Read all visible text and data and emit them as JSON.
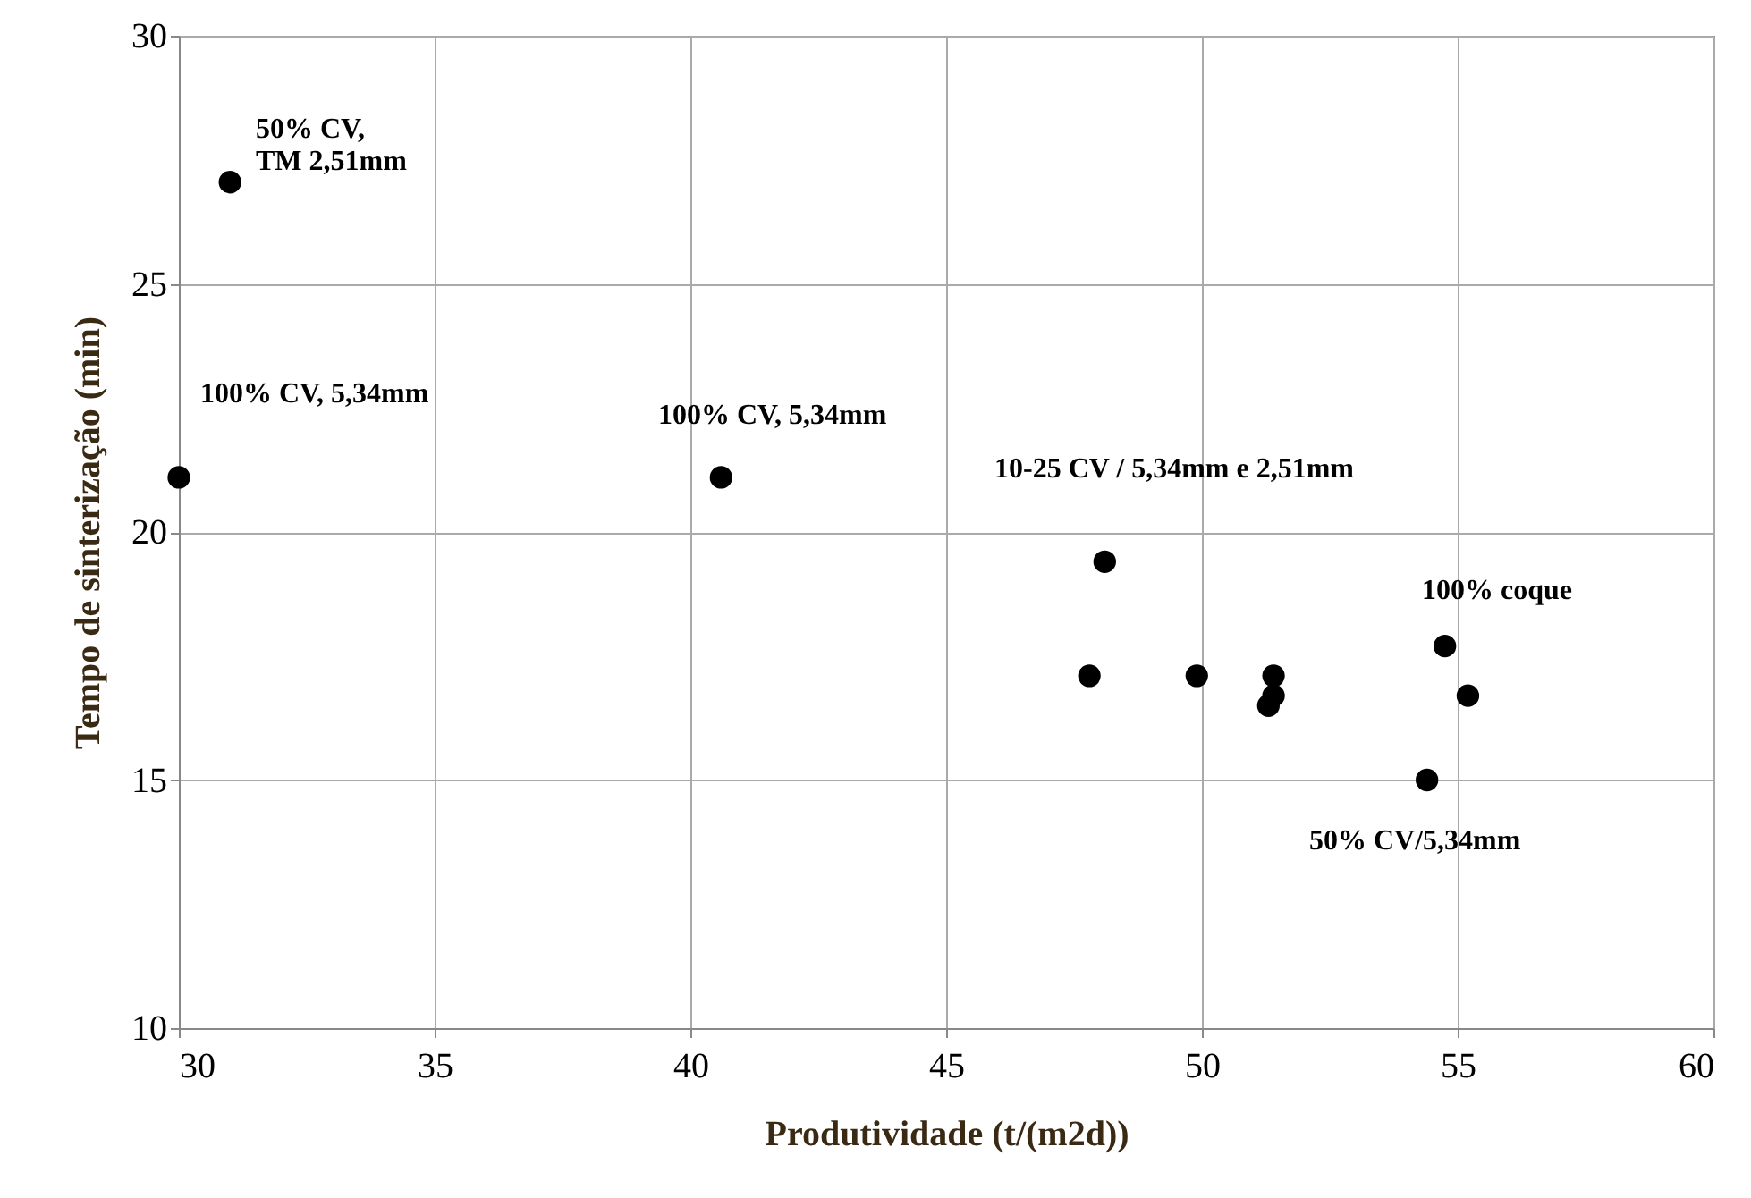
{
  "chart_data": {
    "type": "scatter",
    "xlabel": "Produtividade (t/(m2d))",
    "ylabel": "Tempo de sinterização (min)",
    "x": [
      31,
      30,
      40.6,
      48.1,
      47.8,
      49.9,
      51.4,
      51.4,
      51.3,
      54.75,
      55.2,
      54.4
    ],
    "series": [
      {
        "color": "#000000",
        "values": [
          27.05,
          21.1,
          21.1,
          19.4,
          17.1,
          17.1,
          17.1,
          16.7,
          16.5,
          17.7,
          16.7,
          15.0
        ]
      }
    ],
    "xlim": [
      30,
      60
    ],
    "xticks": [
      30,
      35,
      40,
      45,
      50,
      55,
      60
    ],
    "ylim": [
      10,
      30
    ],
    "yticks": [
      10,
      15,
      20,
      25,
      30
    ],
    "grid": true,
    "marker": "circle",
    "annotations": [
      "50% CV,\nTM 2,51mm",
      "100% CV, 5,34mm",
      "100% CV, 5,34mm",
      "10-25 CV / 5,34mm e 2,51mm",
      "100% coque",
      "50% CV/5,34mm"
    ]
  }
}
